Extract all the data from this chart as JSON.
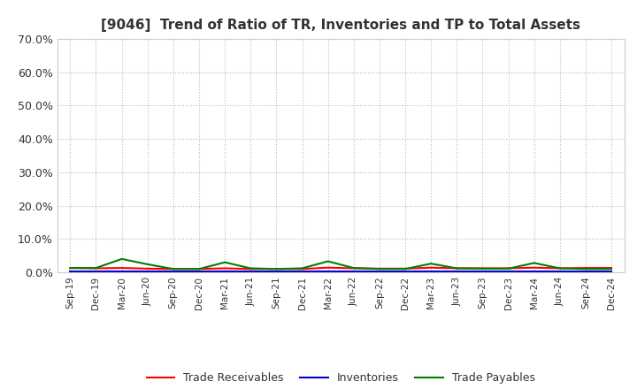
{
  "title": "[9046]  Trend of Ratio of TR, Inventories and TP to Total Assets",
  "x_labels": [
    "Sep-19",
    "Dec-19",
    "Mar-20",
    "Jun-20",
    "Sep-20",
    "Dec-20",
    "Mar-21",
    "Jun-21",
    "Sep-21",
    "Dec-21",
    "Mar-22",
    "Jun-22",
    "Sep-22",
    "Dec-22",
    "Mar-23",
    "Jun-23",
    "Sep-23",
    "Dec-23",
    "Mar-24",
    "Jun-24",
    "Sep-24",
    "Dec-24"
  ],
  "trade_receivables": [
    0.013,
    0.012,
    0.013,
    0.011,
    0.01,
    0.01,
    0.012,
    0.01,
    0.01,
    0.01,
    0.014,
    0.012,
    0.011,
    0.011,
    0.014,
    0.012,
    0.012,
    0.012,
    0.014,
    0.012,
    0.013,
    0.013
  ],
  "inventories": [
    0.002,
    0.002,
    0.002,
    0.002,
    0.002,
    0.002,
    0.002,
    0.002,
    0.002,
    0.002,
    0.002,
    0.002,
    0.002,
    0.002,
    0.002,
    0.002,
    0.002,
    0.002,
    0.002,
    0.002,
    0.002,
    0.002
  ],
  "trade_payables": [
    0.013,
    0.013,
    0.04,
    0.024,
    0.01,
    0.01,
    0.03,
    0.012,
    0.01,
    0.012,
    0.033,
    0.013,
    0.01,
    0.01,
    0.026,
    0.012,
    0.011,
    0.011,
    0.028,
    0.012,
    0.01,
    0.01
  ],
  "tr_color": "#ff0000",
  "inv_color": "#0000cd",
  "tp_color": "#008000",
  "ylim": [
    0.0,
    0.7
  ],
  "yticks": [
    0.0,
    0.1,
    0.2,
    0.3,
    0.4,
    0.5,
    0.6,
    0.7
  ],
  "background_color": "#ffffff",
  "grid_color": "#bbbbbb",
  "title_fontsize": 11,
  "legend_labels": [
    "Trade Receivables",
    "Inventories",
    "Trade Payables"
  ]
}
